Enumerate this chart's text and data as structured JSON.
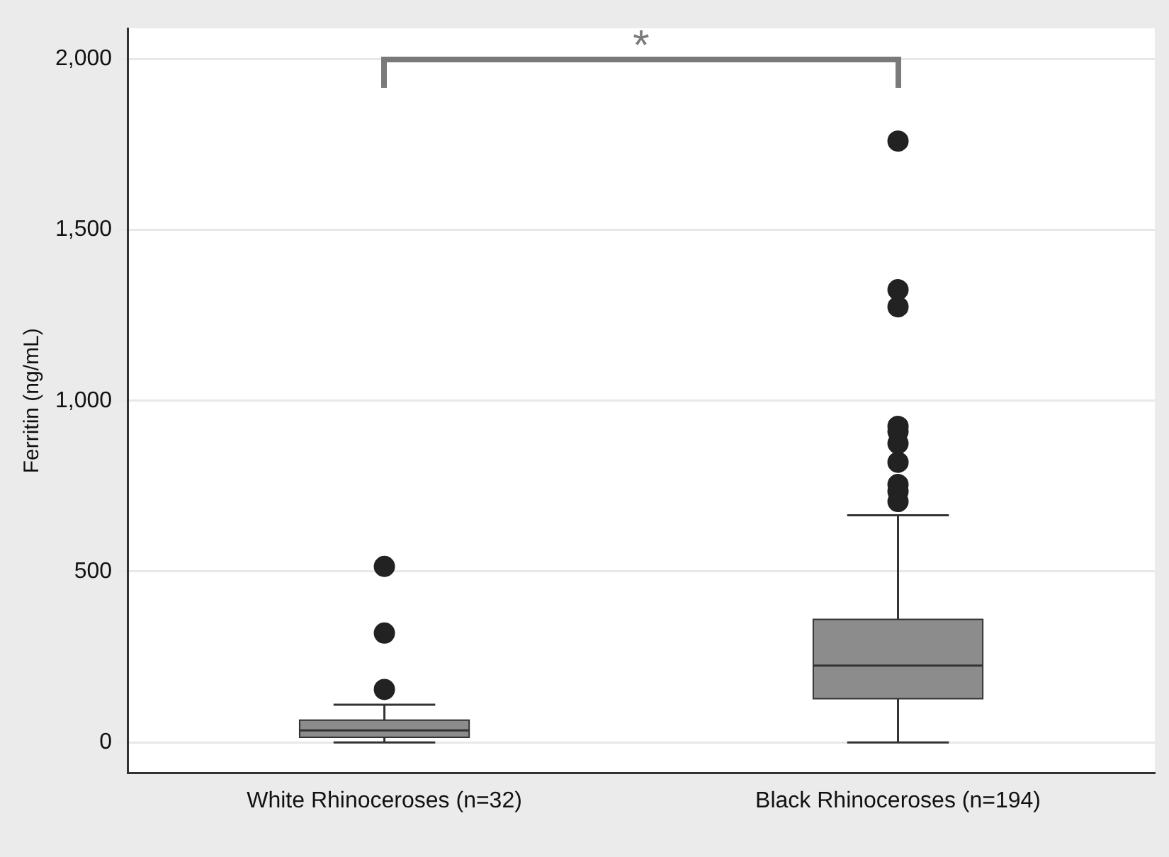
{
  "chart_data": {
    "type": "box",
    "ylabel": "Ferritin (ng/mL)",
    "categories": [
      "White Rhinoceroses (n=32)",
      "Black Rhinoceroses (n=194)"
    ],
    "boxes": [
      {
        "low": 0,
        "q1": 15,
        "median": 35,
        "q3": 65,
        "high": 110,
        "outliers": [
          155,
          320,
          515
        ]
      },
      {
        "low": 0,
        "q1": 128,
        "median": 225,
        "q3": 360,
        "high": 665,
        "outliers": [
          705,
          735,
          755,
          820,
          875,
          910,
          925,
          1275,
          1325,
          1760
        ]
      }
    ],
    "color": "#8c8c8c",
    "ylim": [
      -90,
      2090
    ],
    "yticks": [
      {
        "value": 0,
        "label": "0"
      },
      {
        "value": 500,
        "label": "500"
      },
      {
        "value": 1000,
        "label": "1,000"
      },
      {
        "value": 1500,
        "label": "1,500"
      },
      {
        "value": 2000,
        "label": "2,000"
      }
    ],
    "grid": "y",
    "legend": false,
    "marker": "circle",
    "annotations": [
      "*"
    ]
  }
}
